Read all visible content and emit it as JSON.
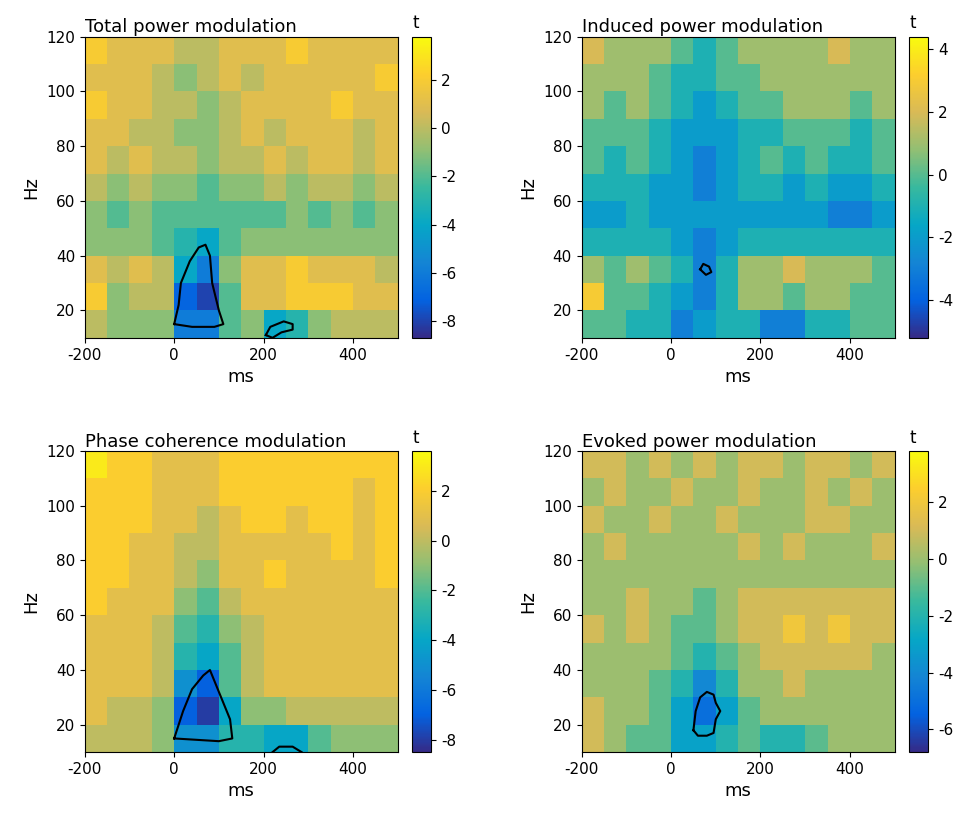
{
  "chart_data": [
    {
      "type": "heatmap",
      "title": "Total power modulation",
      "x_label": "ms",
      "y_label": "Hz",
      "xlim": [
        -200,
        500
      ],
      "ylim": [
        10,
        120
      ],
      "xticks": [
        -200,
        0,
        200,
        400
      ],
      "yticks": [
        20,
        40,
        60,
        80,
        100,
        120
      ],
      "x_bins": [
        -200,
        -150,
        -100,
        -50,
        0,
        50,
        100,
        150,
        200,
        250,
        300,
        350,
        400,
        450,
        500
      ],
      "y_bins": [
        10,
        20,
        30,
        40,
        50,
        60,
        70,
        80,
        90,
        100,
        110,
        120
      ],
      "cells": [
        [
          0,
          -1,
          -1,
          -1,
          -6,
          -6,
          -2,
          -1,
          -4,
          -3,
          -1,
          0,
          0,
          0
        ],
        [
          2,
          -1,
          0,
          0,
          -7,
          -8,
          -2,
          1,
          1,
          2,
          2,
          2,
          1,
          1
        ],
        [
          1,
          0,
          1,
          0,
          -4,
          -6,
          -1,
          1,
          1,
          2,
          1,
          1,
          1,
          0
        ],
        [
          -1,
          -1,
          -1,
          -2,
          -3,
          -4,
          -2,
          -1,
          -1,
          -1,
          -1,
          -1,
          -1,
          -1
        ],
        [
          -1,
          -2,
          -1,
          -2,
          -2,
          -2,
          -2,
          -2,
          -2,
          -1,
          -2,
          -1,
          -2,
          -1
        ],
        [
          0,
          -1,
          0,
          -1,
          -1,
          -2,
          -1,
          -1,
          0,
          -1,
          0,
          0,
          -1,
          0
        ],
        [
          1,
          0,
          1,
          0,
          0,
          -1,
          0,
          0,
          1,
          0,
          1,
          1,
          0,
          1
        ],
        [
          1,
          1,
          0,
          0,
          -1,
          -1,
          0,
          1,
          0,
          1,
          1,
          1,
          0,
          1
        ],
        [
          2,
          1,
          1,
          0,
          0,
          -1,
          0,
          1,
          1,
          1,
          1,
          2,
          1,
          1
        ],
        [
          1,
          1,
          1,
          0,
          -1,
          0,
          1,
          0,
          1,
          1,
          1,
          1,
          1,
          2
        ],
        [
          2,
          1,
          1,
          1,
          0,
          0,
          1,
          1,
          1,
          2,
          1,
          1,
          1,
          1
        ]
      ],
      "colorbar": {
        "label": "t",
        "range": [
          -8.7,
          3.8
        ],
        "ticks": [
          -8,
          -6,
          -4,
          -2,
          0,
          2
        ]
      },
      "clusters": [
        [
          [
            0,
            15
          ],
          [
            10,
            22
          ],
          [
            15,
            30
          ],
          [
            35,
            38
          ],
          [
            55,
            43
          ],
          [
            70,
            44
          ],
          [
            80,
            40
          ],
          [
            85,
            30
          ],
          [
            100,
            20
          ],
          [
            110,
            15
          ],
          [
            90,
            14
          ],
          [
            40,
            14
          ],
          [
            0,
            15
          ]
        ],
        [
          [
            205,
            11
          ],
          [
            215,
            14
          ],
          [
            245,
            16
          ],
          [
            265,
            15
          ],
          [
            265,
            13
          ],
          [
            240,
            12
          ],
          [
            220,
            10
          ],
          [
            205,
            11
          ]
        ]
      ]
    },
    {
      "type": "heatmap",
      "title": "Induced power modulation",
      "x_label": "ms",
      "y_label": "Hz",
      "xlim": [
        -200,
        500
      ],
      "ylim": [
        10,
        120
      ],
      "xticks": [
        -200,
        0,
        200,
        400
      ],
      "yticks": [
        20,
        40,
        60,
        80,
        100,
        120
      ],
      "x_bins": [
        -200,
        -150,
        -100,
        -50,
        0,
        50,
        100,
        150,
        200,
        250,
        300,
        350,
        400,
        450,
        500
      ],
      "y_bins": [
        10,
        20,
        30,
        40,
        50,
        60,
        70,
        80,
        90,
        100,
        110,
        120
      ],
      "cells": [
        [
          0,
          0,
          -1,
          -1,
          -3,
          -2,
          -1,
          -1,
          -3,
          -3,
          -1,
          -1,
          0,
          0
        ],
        [
          3,
          0,
          0,
          -1,
          -2,
          -3,
          -1,
          1,
          1,
          0,
          1,
          1,
          0,
          0
        ],
        [
          1,
          0,
          1,
          0,
          -1,
          -3,
          -1,
          1,
          1,
          2,
          1,
          1,
          1,
          0
        ],
        [
          -1,
          -1,
          -1,
          -1,
          -2,
          -3,
          -2,
          -1,
          -1,
          -1,
          -1,
          -1,
          -1,
          -1
        ],
        [
          -2,
          -2,
          -1,
          -2,
          -2,
          -2,
          -2,
          -2,
          -2,
          -2,
          -2,
          -3,
          -3,
          -2
        ],
        [
          -1,
          -1,
          -1,
          -2,
          -2,
          -3,
          -2,
          -1,
          -1,
          -2,
          -1,
          -2,
          -2,
          -1
        ],
        [
          0,
          -1,
          0,
          -1,
          -2,
          -3,
          -2,
          -1,
          0,
          -1,
          0,
          -1,
          -1,
          0
        ],
        [
          0,
          0,
          0,
          -1,
          -2,
          -2,
          -2,
          -1,
          -1,
          0,
          0,
          0,
          -1,
          0
        ],
        [
          1,
          0,
          1,
          0,
          -1,
          -2,
          -1,
          0,
          0,
          1,
          1,
          1,
          0,
          1
        ],
        [
          1,
          1,
          1,
          0,
          -1,
          -1,
          0,
          0,
          1,
          1,
          1,
          1,
          1,
          1
        ],
        [
          2,
          1,
          1,
          1,
          0,
          -1,
          0,
          1,
          1,
          1,
          1,
          2,
          1,
          1
        ]
      ],
      "colorbar": {
        "label": "t",
        "range": [
          -5.2,
          4.4
        ],
        "ticks": [
          -4,
          -2,
          0,
          2,
          4
        ]
      },
      "clusters": [
        [
          [
            65,
            35
          ],
          [
            72,
            37
          ],
          [
            85,
            36
          ],
          [
            90,
            34
          ],
          [
            78,
            33
          ],
          [
            65,
            35
          ]
        ]
      ]
    },
    {
      "type": "heatmap",
      "title": "Phase coherence modulation",
      "x_label": "ms",
      "y_label": "Hz",
      "xlim": [
        -200,
        500
      ],
      "ylim": [
        10,
        120
      ],
      "xticks": [
        -200,
        0,
        200,
        400
      ],
      "yticks": [
        20,
        40,
        60,
        80,
        100,
        120
      ],
      "x_bins": [
        -200,
        -150,
        -100,
        -50,
        0,
        50,
        100,
        150,
        200,
        250,
        300,
        350,
        400,
        450,
        500
      ],
      "y_bins": [
        10,
        20,
        30,
        40,
        50,
        60,
        70,
        80,
        90,
        100,
        110,
        120
      ],
      "cells": [
        [
          0,
          0,
          0,
          -1,
          -5,
          -5,
          -3,
          -3,
          -4,
          -4,
          -2,
          -1,
          -1,
          -1
        ],
        [
          1,
          0,
          0,
          -1,
          -7,
          -8,
          -4,
          -1,
          -1,
          0,
          0,
          0,
          0,
          0
        ],
        [
          1,
          1,
          1,
          0,
          -5,
          -7,
          -2,
          0,
          1,
          1,
          1,
          1,
          1,
          1
        ],
        [
          1,
          1,
          1,
          0,
          -3,
          -4,
          -2,
          0,
          1,
          1,
          1,
          1,
          1,
          1
        ],
        [
          1,
          1,
          1,
          0,
          -2,
          -3,
          -1,
          0,
          1,
          1,
          1,
          1,
          1,
          1
        ],
        [
          2,
          1,
          1,
          1,
          -1,
          -2,
          0,
          1,
          1,
          1,
          1,
          1,
          1,
          1
        ],
        [
          2,
          2,
          1,
          1,
          0,
          -1,
          1,
          1,
          2,
          1,
          1,
          1,
          1,
          2
        ],
        [
          2,
          2,
          1,
          1,
          0,
          0,
          1,
          1,
          1,
          1,
          1,
          2,
          1,
          2
        ],
        [
          2,
          2,
          2,
          1,
          1,
          0,
          1,
          2,
          2,
          1,
          2,
          2,
          1,
          2
        ],
        [
          2,
          2,
          2,
          1,
          1,
          1,
          2,
          2,
          2,
          2,
          2,
          2,
          1,
          2
        ],
        [
          3,
          2,
          2,
          1,
          1,
          1,
          2,
          2,
          2,
          2,
          2,
          2,
          2,
          2
        ]
      ],
      "colorbar": {
        "label": "t",
        "range": [
          -8.5,
          3.6
        ],
        "ticks": [
          -8,
          -6,
          -4,
          -2,
          0,
          2
        ]
      },
      "clusters": [
        [
          [
            0,
            15
          ],
          [
            20,
            25
          ],
          [
            40,
            33
          ],
          [
            65,
            38
          ],
          [
            80,
            40
          ],
          [
            100,
            32
          ],
          [
            125,
            22
          ],
          [
            130,
            15
          ],
          [
            100,
            14
          ],
          [
            0,
            15
          ]
        ],
        [
          [
            220,
            10
          ],
          [
            235,
            12
          ],
          [
            265,
            12
          ],
          [
            285,
            10
          ]
        ]
      ]
    },
    {
      "type": "heatmap",
      "title": "Evoked power modulation",
      "x_label": "ms",
      "y_label": "Hz",
      "xlim": [
        -200,
        500
      ],
      "ylim": [
        10,
        120
      ],
      "xticks": [
        -200,
        0,
        200,
        400
      ],
      "yticks": [
        20,
        40,
        60,
        80,
        100,
        120
      ],
      "x_bins": [
        -200,
        -150,
        -100,
        -50,
        0,
        50,
        100,
        150,
        200,
        250,
        300,
        350,
        400,
        450,
        500
      ],
      "y_bins": [
        10,
        20,
        30,
        40,
        50,
        60,
        70,
        80,
        90,
        100,
        110,
        120
      ],
      "cells": [
        [
          1,
          0,
          -1,
          -1,
          -3,
          -3,
          -2,
          -1,
          -2,
          -2,
          -1,
          0,
          0,
          0
        ],
        [
          1,
          0,
          0,
          -1,
          -3,
          -5,
          -3,
          -1,
          0,
          0,
          0,
          0,
          0,
          0
        ],
        [
          0,
          0,
          0,
          -1,
          -2,
          -4,
          -2,
          0,
          0,
          1,
          0,
          0,
          0,
          0
        ],
        [
          0,
          0,
          0,
          0,
          -1,
          -2,
          -1,
          0,
          1,
          1,
          1,
          1,
          1,
          0
        ],
        [
          1,
          0,
          1,
          0,
          -1,
          -1,
          0,
          1,
          1,
          2,
          1,
          2,
          1,
          1
        ],
        [
          0,
          0,
          1,
          0,
          0,
          -1,
          0,
          1,
          1,
          1,
          1,
          1,
          1,
          1
        ],
        [
          0,
          0,
          0,
          0,
          0,
          0,
          0,
          0,
          0,
          0,
          0,
          0,
          0,
          0
        ],
        [
          0,
          1,
          0,
          0,
          0,
          0,
          0,
          1,
          0,
          1,
          0,
          0,
          0,
          1
        ],
        [
          1,
          0,
          0,
          1,
          0,
          0,
          1,
          0,
          0,
          0,
          1,
          1,
          0,
          0
        ],
        [
          0,
          1,
          0,
          0,
          1,
          0,
          0,
          1,
          0,
          0,
          1,
          0,
          1,
          0
        ],
        [
          1,
          1,
          0,
          1,
          0,
          1,
          0,
          1,
          1,
          0,
          1,
          1,
          0,
          1
        ]
      ],
      "colorbar": {
        "label": "t",
        "range": [
          -6.8,
          3.8
        ],
        "ticks": [
          -6,
          -4,
          -2,
          0,
          2
        ]
      },
      "clusters": [
        [
          [
            50,
            18
          ],
          [
            55,
            25
          ],
          [
            65,
            30
          ],
          [
            80,
            32
          ],
          [
            95,
            31
          ],
          [
            100,
            28
          ],
          [
            110,
            25
          ],
          [
            100,
            22
          ],
          [
            95,
            17
          ],
          [
            80,
            16
          ],
          [
            60,
            16
          ],
          [
            50,
            18
          ]
        ]
      ]
    }
  ]
}
